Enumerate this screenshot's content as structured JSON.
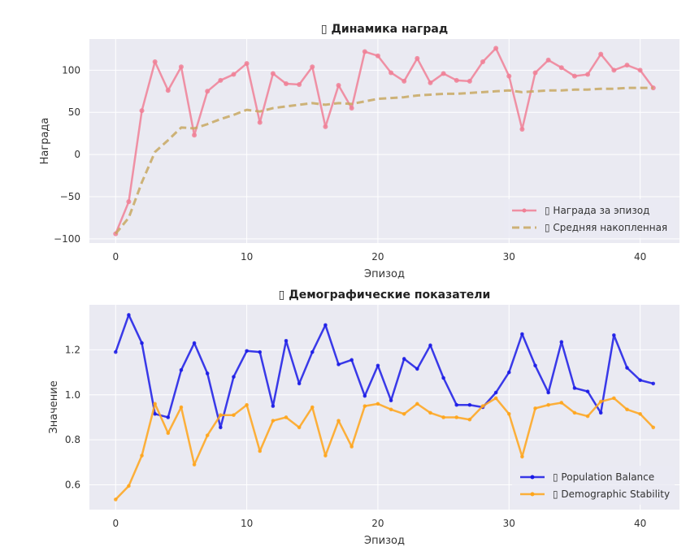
{
  "chart_data": [
    {
      "type": "line",
      "title": "▯ Динамика наград",
      "xlabel": "Эпизод",
      "ylabel": "Награда",
      "xlim": [
        -2,
        43
      ],
      "ylim": [
        -105,
        137
      ],
      "xticks": [
        0,
        10,
        20,
        30,
        40
      ],
      "yticks": [
        -100,
        -50,
        0,
        50,
        100
      ],
      "grid": true,
      "legend_position": "lower-right",
      "x": [
        0,
        1,
        2,
        3,
        4,
        5,
        6,
        7,
        8,
        9,
        10,
        11,
        12,
        13,
        14,
        15,
        16,
        17,
        18,
        19,
        20,
        21,
        22,
        23,
        24,
        25,
        26,
        27,
        28,
        29,
        30,
        31,
        32,
        33,
        34,
        35,
        36,
        37,
        38,
        39,
        40,
        41
      ],
      "series": [
        {
          "name": "▯ Награда за эпизод",
          "color": "#f08096",
          "style": "solid-markers",
          "values": [
            -94,
            -56,
            52,
            110,
            76,
            104,
            23,
            75,
            88,
            95,
            108,
            38,
            96,
            84,
            83,
            104,
            33,
            82,
            55,
            122,
            117,
            97,
            87,
            114,
            85,
            96,
            88,
            87,
            110,
            126,
            93,
            30,
            97,
            112,
            103,
            93,
            95,
            119,
            100,
            106,
            100,
            79
          ]
        },
        {
          "name": "▯ Средняя накопленная",
          "color": "#c8a862",
          "style": "dashed",
          "values": [
            -94,
            -75,
            -33,
            3,
            17,
            32,
            31,
            36,
            42,
            47,
            53,
            51,
            55,
            57,
            59,
            61,
            59,
            61,
            60,
            63,
            66,
            67,
            68,
            70,
            71,
            72,
            72,
            73,
            74,
            75,
            76,
            74,
            75,
            76,
            76,
            77,
            77,
            78,
            78,
            79,
            79,
            79
          ]
        }
      ]
    },
    {
      "type": "line",
      "title": "▯ Демографические показатели",
      "xlabel": "Эпизод",
      "ylabel": "Значение",
      "xlim": [
        -2,
        43
      ],
      "ylim": [
        0.49,
        1.4
      ],
      "xticks": [
        0,
        10,
        20,
        30,
        40
      ],
      "yticks": [
        0.6,
        0.8,
        1.0,
        1.2
      ],
      "grid": true,
      "legend_position": "lower-right",
      "x": [
        0,
        1,
        2,
        3,
        4,
        5,
        6,
        7,
        8,
        9,
        10,
        11,
        12,
        13,
        14,
        15,
        16,
        17,
        18,
        19,
        20,
        21,
        22,
        23,
        24,
        25,
        26,
        27,
        28,
        29,
        30,
        31,
        32,
        33,
        34,
        35,
        36,
        37,
        38,
        39,
        40,
        41
      ],
      "series": [
        {
          "name": "▯ Population Balance",
          "color": "#1a1ae6",
          "style": "solid-markers",
          "values": [
            1.19,
            1.355,
            1.23,
            0.915,
            0.9,
            1.11,
            1.23,
            1.095,
            0.855,
            1.08,
            1.195,
            1.19,
            0.95,
            1.24,
            1.05,
            1.19,
            1.31,
            1.135,
            1.155,
            0.995,
            1.13,
            0.975,
            1.16,
            1.115,
            1.22,
            1.075,
            0.955,
            0.955,
            0.945,
            1.01,
            1.1,
            1.27,
            1.13,
            1.01,
            1.235,
            1.03,
            1.015,
            0.92,
            1.265,
            1.12,
            1.065,
            1.05
          ]
        },
        {
          "name": "▯ Demographic Stability",
          "color": "#ffa51a",
          "style": "solid-markers",
          "values": [
            0.535,
            0.595,
            0.73,
            0.96,
            0.83,
            0.945,
            0.69,
            0.82,
            0.91,
            0.91,
            0.955,
            0.75,
            0.885,
            0.9,
            0.855,
            0.945,
            0.73,
            0.885,
            0.77,
            0.95,
            0.96,
            0.935,
            0.915,
            0.96,
            0.92,
            0.9,
            0.9,
            0.89,
            0.95,
            0.985,
            0.915,
            0.725,
            0.94,
            0.955,
            0.965,
            0.92,
            0.905,
            0.97,
            0.985,
            0.935,
            0.915,
            0.855
          ]
        }
      ]
    }
  ]
}
